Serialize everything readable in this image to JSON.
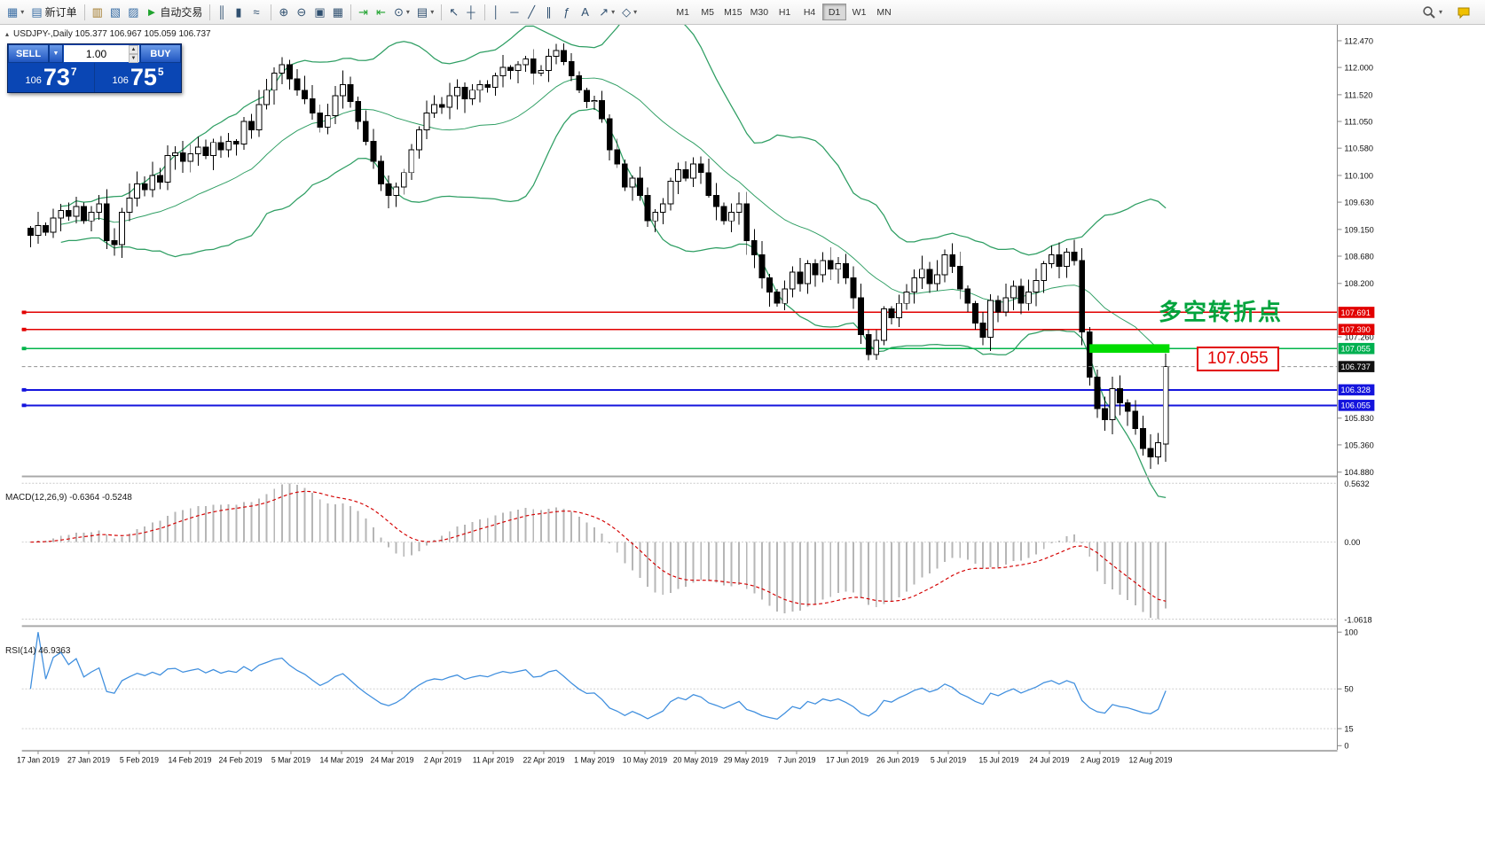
{
  "toolbar": {
    "groups": [
      {
        "items": [
          {
            "name": "new-chart-icon",
            "glyph": "▦",
            "color": "#3a6ea5",
            "caret": true
          },
          {
            "name": "new-order-icon",
            "glyph": "▤",
            "color": "#3a6ea5",
            "label": "新订单"
          }
        ]
      },
      {
        "items": [
          {
            "name": "market-watch-icon",
            "glyph": "▥",
            "color": "#a07828"
          },
          {
            "name": "data-window-icon",
            "glyph": "▧",
            "color": "#3a6ea5"
          },
          {
            "name": "navigator-icon",
            "glyph": "▨",
            "color": "#3a6ea5"
          },
          {
            "name": "autotrading-icon",
            "glyph": "►",
            "color": "#1fa32e",
            "label": "自动交易"
          }
        ]
      },
      {
        "items": [
          {
            "name": "bar-chart-icon",
            "glyph": "║"
          },
          {
            "name": "candlestick-chart-icon",
            "glyph": "▮"
          },
          {
            "name": "line-chart-icon",
            "glyph": "≈"
          }
        ]
      },
      {
        "items": [
          {
            "name": "zoom-in-icon",
            "glyph": "⊕"
          },
          {
            "name": "zoom-out-icon",
            "glyph": "⊖"
          },
          {
            "name": "auto-arrange-icon",
            "glyph": "▣"
          },
          {
            "name": "grid-icon",
            "glyph": "▦"
          }
        ]
      },
      {
        "items": [
          {
            "name": "auto-scroll-icon",
            "glyph": "⇥",
            "color": "#1fa32e"
          },
          {
            "name": "chart-shift-icon",
            "glyph": "⇤",
            "color": "#1fa32e"
          },
          {
            "name": "period-icon",
            "glyph": "⊙",
            "caret": true
          },
          {
            "name": "templates-icon",
            "glyph": "▤",
            "caret": true
          }
        ]
      },
      {
        "items": [
          {
            "name": "cursor-icon",
            "glyph": "↖"
          },
          {
            "name": "crosshair-icon",
            "glyph": "┼"
          }
        ]
      },
      {
        "items": [
          {
            "name": "vertical-line-icon",
            "glyph": "│"
          },
          {
            "name": "horizontal-line-icon",
            "glyph": "─"
          },
          {
            "name": "trendline-icon",
            "glyph": "╱"
          },
          {
            "name": "channel-icon",
            "glyph": "∥"
          },
          {
            "name": "fibonacci-icon",
            "glyph": "ƒ"
          },
          {
            "name": "text-icon",
            "glyph": "A"
          },
          {
            "name": "arrows-icon",
            "glyph": "↗",
            "caret": true
          },
          {
            "name": "shapes-icon",
            "glyph": "◇",
            "caret": true
          }
        ]
      }
    ],
    "timeframes": [
      "M1",
      "M5",
      "M15",
      "M30",
      "H1",
      "H4",
      "D1",
      "W1",
      "MN"
    ],
    "active_timeframe": "D1"
  },
  "symbol_header": "USDJPY-,Daily  105.377 106.967 105.059 106.737",
  "trade_panel": {
    "sell_label": "SELL",
    "buy_label": "BUY",
    "volume": "1.00",
    "sell_small": "106",
    "sell_big": "73",
    "sell_sup": "7",
    "buy_small": "106",
    "buy_big": "75",
    "buy_sup": "5"
  },
  "annotations": {
    "turning_point": "多空转折点",
    "green_level_tag": "107.055"
  },
  "price_axis": {
    "plain_ticks": [
      "112.470",
      "112.000",
      "111.520",
      "111.050",
      "110.580",
      "110.100",
      "109.630",
      "109.150",
      "108.680",
      "108.200",
      "107.260",
      "105.830",
      "105.360",
      "104.880"
    ],
    "line_labels": [
      {
        "value": "107.691",
        "color": "#e20000"
      },
      {
        "value": "107.390",
        "color": "#e20000"
      },
      {
        "value": "107.055",
        "color": "#00b050"
      },
      {
        "value": "106.737",
        "color": "#111111"
      },
      {
        "value": "106.328",
        "color": "#1414dd"
      },
      {
        "value": "106.055",
        "color": "#1414dd"
      }
    ]
  },
  "macd_panel": {
    "header": "MACD(12,26,9) -0.6364 -0.5248",
    "scale_top": "0.5632",
    "scale_zero": "0.00",
    "scale_bottom": "-1.0618"
  },
  "rsi_panel": {
    "header": "RSI(14) 46.9363",
    "scale": [
      "100",
      "50",
      "15",
      "0"
    ],
    "levels": [
      50,
      15
    ]
  },
  "time_axis": [
    "17 Jan 2019",
    "27 Jan 2019",
    "5 Feb 2019",
    "14 Feb 2019",
    "24 Feb 2019",
    "5 Mar 2019",
    "14 Mar 2019",
    "24 Mar 2019",
    "2 Apr 2019",
    "11 Apr 2019",
    "22 Apr 2019",
    "1 May 2019",
    "10 May 2019",
    "20 May 2019",
    "29 May 2019",
    "7 Jun 2019",
    "17 Jun 2019",
    "26 Jun 2019",
    "5 Jul 2019",
    "15 Jul 2019",
    "24 Jul 2019",
    "2 Aug 2019",
    "12 Aug 2019"
  ],
  "chart_data": {
    "type": "candlestick+indicators",
    "symbol": "USDJPY",
    "period": "Daily",
    "y_range": [
      104.82,
      112.75
    ],
    "last_candle_ohlc": [
      105.377,
      106.967,
      105.059,
      106.737
    ],
    "closes": [
      109.05,
      109.22,
      109.1,
      109.35,
      109.48,
      109.38,
      109.55,
      109.3,
      109.45,
      109.6,
      108.95,
      108.88,
      109.45,
      109.7,
      109.95,
      109.85,
      110.1,
      109.98,
      110.45,
      110.5,
      110.35,
      110.48,
      110.6,
      110.45,
      110.68,
      110.55,
      110.7,
      110.65,
      111.05,
      110.9,
      111.35,
      111.6,
      111.9,
      112.05,
      111.8,
      111.6,
      111.45,
      111.2,
      110.95,
      111.15,
      111.5,
      111.7,
      111.4,
      111.05,
      110.7,
      110.35,
      109.95,
      109.75,
      109.9,
      110.15,
      110.55,
      110.9,
      111.2,
      111.35,
      111.3,
      111.5,
      111.65,
      111.45,
      111.6,
      111.7,
      111.65,
      111.85,
      112.0,
      111.95,
      112.05,
      112.15,
      111.9,
      111.95,
      112.2,
      112.3,
      112.1,
      111.85,
      111.6,
      111.4,
      111.42,
      111.1,
      110.55,
      110.3,
      109.9,
      110.05,
      109.75,
      109.3,
      109.45,
      109.6,
      110.0,
      110.2,
      110.05,
      110.3,
      110.15,
      109.75,
      109.55,
      109.3,
      109.45,
      109.6,
      108.95,
      108.7,
      108.3,
      108.05,
      107.85,
      108.1,
      108.4,
      108.2,
      108.55,
      108.35,
      108.6,
      108.45,
      108.55,
      108.3,
      107.95,
      107.3,
      106.95,
      107.2,
      107.75,
      107.6,
      107.85,
      108.05,
      108.3,
      108.45,
      108.2,
      108.35,
      108.7,
      108.5,
      108.1,
      107.85,
      107.5,
      107.25,
      107.9,
      107.7,
      107.95,
      108.15,
      107.85,
      108.05,
      108.25,
      108.55,
      108.7,
      108.5,
      108.75,
      108.6,
      107.35,
      106.55,
      106.0,
      105.8,
      106.35,
      106.1,
      105.95,
      105.65,
      105.3,
      105.15,
      105.4,
      106.737
    ],
    "levels": {
      "red": [
        107.691,
        107.39
      ],
      "green": [
        107.055
      ],
      "blue": [
        106.328,
        106.055
      ],
      "current": 106.737
    },
    "indicators": {
      "bollinger": [
        20,
        2
      ],
      "macd": [
        12,
        26,
        9
      ],
      "rsi": [
        14
      ]
    },
    "macd_last": [
      -0.6364,
      -0.5248
    ],
    "rsi_last": 46.9363,
    "colors": {
      "band": "#2e9e63",
      "bull": "#ffffff",
      "bear": "#000000",
      "wick": "#000000",
      "macd_hist": "#b6b6b6",
      "macd_signal": "#d40000",
      "rsi": "#3e8ede",
      "red_level": "#e20000",
      "blue_level": "#1414dd",
      "green_level": "#00b44a",
      "green_zone": "#00dc00",
      "current_line": "#909090"
    }
  }
}
